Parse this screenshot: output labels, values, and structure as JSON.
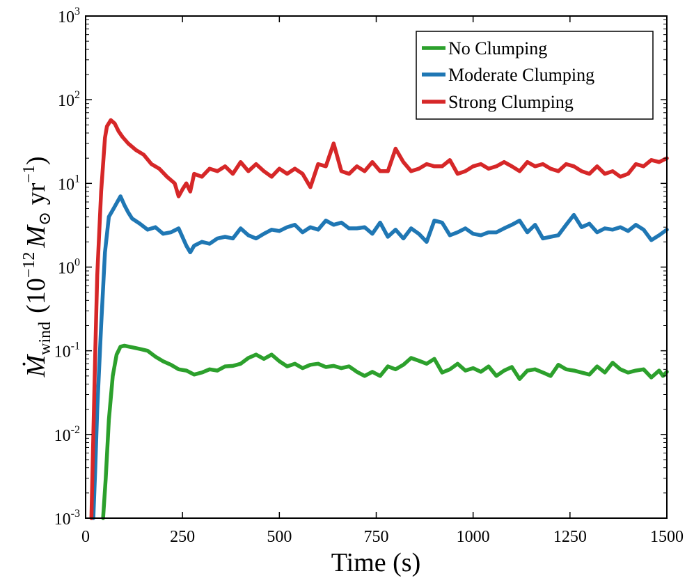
{
  "chart_data": {
    "type": "line",
    "title": "",
    "xlabel": "Time (s)",
    "ylabel_main": "Ṁ",
    "ylabel_sub": "wind",
    "ylabel_units_pre": "(10",
    "ylabel_units_exp": "−12",
    "ylabel_units_mid": "M",
    "ylabel_units_sub": "⊙",
    "ylabel_units_yr": " yr",
    "ylabel_units_yr_exp": "−1",
    "ylabel_units_post": ")",
    "xlim": [
      0,
      1500
    ],
    "ylim": [
      0.001,
      1000
    ],
    "yscale": "log",
    "grid": false,
    "legend_position": "top-right",
    "xticks": [
      {
        "value": 0,
        "label": "0"
      },
      {
        "value": 250,
        "label": "250"
      },
      {
        "value": 500,
        "label": "500"
      },
      {
        "value": 750,
        "label": "750"
      },
      {
        "value": 1000,
        "label": "1000"
      },
      {
        "value": 1250,
        "label": "1250"
      },
      {
        "value": 1500,
        "label": "1500"
      }
    ],
    "yticks": [
      {
        "value": 0.001,
        "base": "10",
        "exp": "-3"
      },
      {
        "value": 0.01,
        "base": "10",
        "exp": "-2"
      },
      {
        "value": 0.1,
        "base": "10",
        "exp": "-1"
      },
      {
        "value": 1,
        "base": "10",
        "exp": "0"
      },
      {
        "value": 10,
        "base": "10",
        "exp": "1"
      },
      {
        "value": 100,
        "base": "10",
        "exp": "2"
      },
      {
        "value": 1000,
        "base": "10",
        "exp": "3"
      }
    ],
    "series": [
      {
        "name": "No Clumping",
        "color": "#2ca02c",
        "x": [
          45,
          52,
          60,
          70,
          80,
          90,
          100,
          120,
          140,
          160,
          180,
          200,
          220,
          240,
          260,
          280,
          300,
          320,
          340,
          360,
          380,
          400,
          420,
          440,
          460,
          480,
          500,
          520,
          540,
          560,
          580,
          600,
          620,
          640,
          660,
          680,
          700,
          720,
          740,
          760,
          780,
          800,
          820,
          840,
          860,
          880,
          900,
          920,
          940,
          960,
          980,
          1000,
          1020,
          1040,
          1060,
          1080,
          1100,
          1120,
          1140,
          1160,
          1180,
          1200,
          1220,
          1240,
          1260,
          1280,
          1300,
          1320,
          1340,
          1360,
          1380,
          1400,
          1420,
          1440,
          1460,
          1480,
          1490,
          1500
        ],
        "values": [
          0.001,
          0.003,
          0.015,
          0.05,
          0.09,
          0.112,
          0.115,
          0.11,
          0.105,
          0.1,
          0.085,
          0.075,
          0.068,
          0.06,
          0.058,
          0.052,
          0.055,
          0.06,
          0.058,
          0.065,
          0.066,
          0.07,
          0.082,
          0.09,
          0.08,
          0.09,
          0.075,
          0.065,
          0.07,
          0.062,
          0.068,
          0.07,
          0.064,
          0.066,
          0.062,
          0.065,
          0.056,
          0.05,
          0.056,
          0.05,
          0.065,
          0.06,
          0.068,
          0.082,
          0.076,
          0.07,
          0.08,
          0.055,
          0.06,
          0.07,
          0.058,
          0.062,
          0.056,
          0.065,
          0.05,
          0.058,
          0.064,
          0.046,
          0.058,
          0.06,
          0.055,
          0.05,
          0.068,
          0.06,
          0.058,
          0.055,
          0.052,
          0.065,
          0.055,
          0.072,
          0.06,
          0.055,
          0.058,
          0.06,
          0.048,
          0.058,
          0.05,
          0.056
        ]
      },
      {
        "name": "Moderate Clumping",
        "color": "#1f77b4",
        "x": [
          20,
          25,
          30,
          40,
          50,
          60,
          70,
          80,
          90,
          100,
          110,
          120,
          140,
          160,
          180,
          200,
          220,
          240,
          260,
          270,
          280,
          300,
          320,
          340,
          360,
          380,
          400,
          420,
          440,
          460,
          480,
          500,
          520,
          540,
          560,
          580,
          600,
          620,
          640,
          660,
          680,
          700,
          720,
          740,
          760,
          780,
          800,
          820,
          840,
          860,
          880,
          900,
          920,
          940,
          960,
          980,
          1000,
          1020,
          1040,
          1060,
          1080,
          1100,
          1120,
          1140,
          1160,
          1180,
          1200,
          1220,
          1240,
          1260,
          1280,
          1300,
          1320,
          1340,
          1360,
          1380,
          1400,
          1420,
          1440,
          1460,
          1480,
          1500
        ],
        "values": [
          0.001,
          0.004,
          0.02,
          0.2,
          1.5,
          4.0,
          4.8,
          5.8,
          7.0,
          5.5,
          4.5,
          3.8,
          3.3,
          2.8,
          3.0,
          2.5,
          2.6,
          2.9,
          1.8,
          1.5,
          1.8,
          2.0,
          1.9,
          2.2,
          2.3,
          2.2,
          2.9,
          2.4,
          2.2,
          2.5,
          2.8,
          2.7,
          3.0,
          3.2,
          2.6,
          3.0,
          2.8,
          3.6,
          3.2,
          3.4,
          2.9,
          2.9,
          3.0,
          2.5,
          3.4,
          2.3,
          2.8,
          2.2,
          2.9,
          2.5,
          2.0,
          3.6,
          3.4,
          2.4,
          2.6,
          2.9,
          2.5,
          2.4,
          2.6,
          2.6,
          2.9,
          3.2,
          3.6,
          2.6,
          3.2,
          2.2,
          2.3,
          2.4,
          3.2,
          4.2,
          3.0,
          3.3,
          2.6,
          2.9,
          2.8,
          3.0,
          2.7,
          3.2,
          2.8,
          2.1,
          2.4,
          2.8
        ]
      },
      {
        "name": "Strong Clumping",
        "color": "#d62728",
        "x": [
          15,
          20,
          25,
          30,
          40,
          50,
          55,
          65,
          75,
          85,
          95,
          110,
          130,
          150,
          170,
          190,
          210,
          230,
          240,
          250,
          260,
          270,
          280,
          300,
          320,
          340,
          360,
          380,
          400,
          420,
          440,
          460,
          480,
          500,
          520,
          540,
          560,
          580,
          600,
          620,
          640,
          660,
          680,
          700,
          720,
          740,
          760,
          780,
          800,
          820,
          840,
          860,
          880,
          900,
          920,
          940,
          960,
          980,
          1000,
          1020,
          1040,
          1060,
          1080,
          1100,
          1120,
          1140,
          1160,
          1180,
          1200,
          1220,
          1240,
          1260,
          1280,
          1300,
          1320,
          1340,
          1360,
          1380,
          1400,
          1420,
          1440,
          1460,
          1480,
          1500
        ],
        "values": [
          0.001,
          0.01,
          0.1,
          0.8,
          8.0,
          35,
          48,
          57,
          52,
          42,
          36,
          30,
          25,
          22,
          17,
          15,
          12,
          10,
          7.0,
          8.5,
          10,
          8.0,
          13,
          12,
          15,
          14,
          16,
          13,
          18,
          14,
          17,
          14,
          12,
          15,
          13,
          15,
          13,
          9.0,
          17,
          16,
          30,
          14,
          13,
          16,
          14,
          18,
          14,
          14,
          26,
          18,
          14,
          15,
          17,
          16,
          16,
          19,
          13,
          14,
          16,
          17,
          15,
          16,
          18,
          16,
          14,
          18,
          16,
          17,
          15,
          14,
          17,
          16,
          14,
          13,
          16,
          13,
          14,
          12,
          13,
          17,
          16,
          19,
          18,
          20
        ]
      }
    ]
  }
}
